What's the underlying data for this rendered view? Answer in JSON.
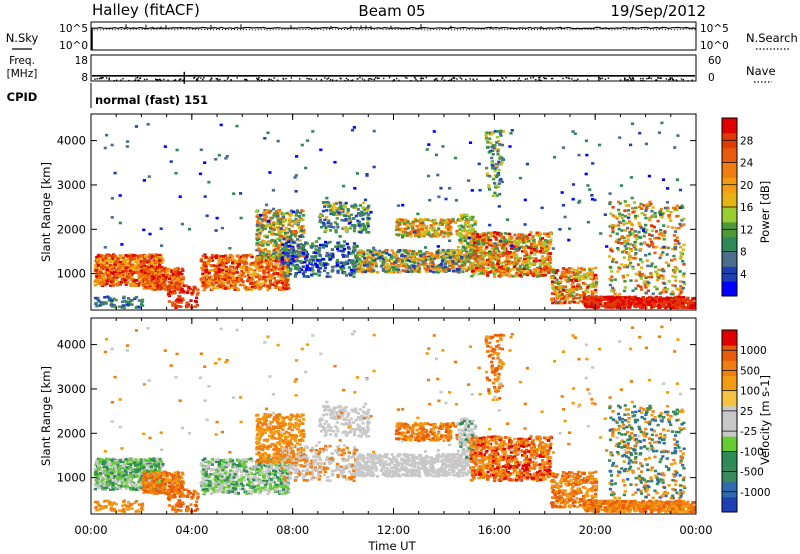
{
  "header": {
    "station": "Halley (fitACF)",
    "beam": "Beam 05",
    "date": "19/Sep/2012"
  },
  "chart_data": [
    {
      "type": "line",
      "panel": "noise",
      "left_label": "N.Sky",
      "right_label": "N.Search",
      "left_ticks": [
        "10^5",
        "10^0"
      ],
      "right_ticks": [
        "10^5",
        "10^0"
      ],
      "line_style": "solid (N.Sky), dotted (N.Search)"
    },
    {
      "type": "line",
      "panel": "frequency-nave",
      "left_label_line1": "Freq.",
      "left_label_line2": "[MHz]",
      "right_label": "Nave",
      "left_ticks": [
        18,
        8
      ],
      "right_ticks": [
        60,
        0
      ],
      "frequency_mhz": 10,
      "line_style": "solid (Freq.), dotted (Nave)"
    },
    {
      "type": "table",
      "panel": "cpid",
      "label": "CPID",
      "value": "normal (fast) 151"
    },
    {
      "type": "heatmap",
      "panel": "power",
      "ylabel": "Slant Range [km]",
      "yticks": [
        1000,
        2000,
        3000,
        4000
      ],
      "ylim": [
        180,
        4600
      ],
      "xlim": [
        0,
        24
      ],
      "colorbar": {
        "label": "Power [dB]",
        "ticks": [
          "28",
          "24",
          "20",
          "16",
          "12",
          "8",
          "4"
        ],
        "colors": [
          "#0000ff",
          "#1f3fb4",
          "#4a6e8c",
          "#2e8b57",
          "#4e9a3a",
          "#9acd32",
          "#e7b416",
          "#f39c12",
          "#f07d10",
          "#e85a0c",
          "#e03a06",
          "#e00000"
        ]
      }
    },
    {
      "type": "heatmap",
      "panel": "velocity",
      "ylabel": "Slant Range [km]",
      "yticks": [
        1000,
        2000,
        3000,
        4000
      ],
      "ylim": [
        180,
        4600
      ],
      "xlim": [
        0,
        24
      ],
      "xticks": [
        "00:00",
        "04:00",
        "08:00",
        "12:00",
        "16:00",
        "20:00",
        "00:00"
      ],
      "xlabel": "Time UT",
      "colorbar": {
        "label": "Velocity [m s-1]",
        "ticks": [
          "1000",
          "500",
          "100",
          "25",
          "-25",
          "-100",
          "-500",
          "-1000"
        ],
        "colors": [
          "#1f3fb4",
          "#2e6bb0",
          "#3a8a5a",
          "#2e8b57",
          "#66cc33",
          "#c8c8c8",
          "#c8c8c8",
          "#f5c242",
          "#f39c12",
          "#f07d10",
          "#e85a0c",
          "#e00000"
        ]
      }
    }
  ]
}
